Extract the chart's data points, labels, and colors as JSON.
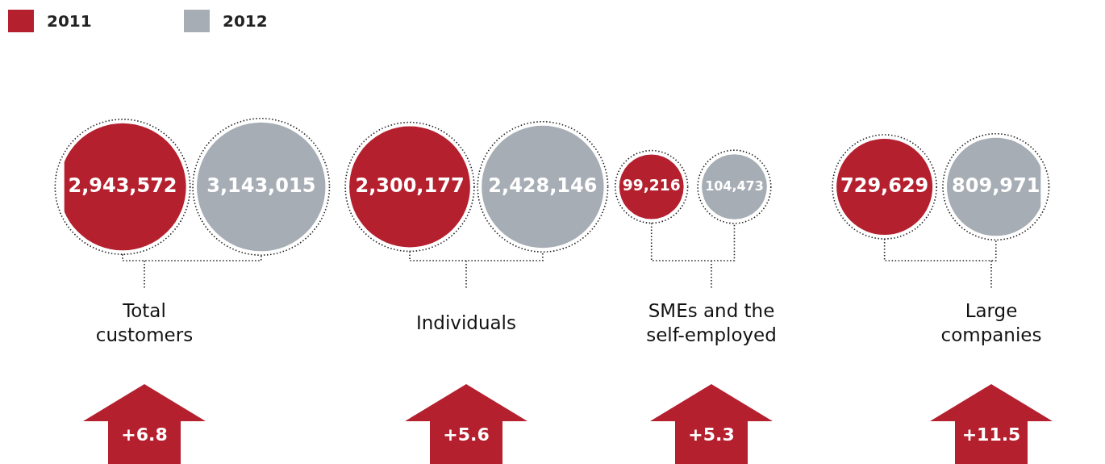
{
  "chart_data": {
    "type": "other",
    "categories": [
      "Total\ncustomers",
      "Individuals",
      "SMEs and the\nself-employed",
      "Large\ncompanies"
    ],
    "series": [
      {
        "name": "2011",
        "color": "#b5202e",
        "values": [
          2943572,
          2300177,
          99216,
          729629
        ],
        "value_labels": [
          "2,943,572",
          "2,300,177",
          "99,216",
          "729,629"
        ]
      },
      {
        "name": "2012",
        "color": "#a6adb4",
        "values": [
          3143015,
          2428146,
          104473,
          809971
        ],
        "value_labels": [
          "3,143,015",
          "2,428,146",
          "104,473",
          "809,971"
        ]
      }
    ],
    "annotations": [
      "+6.8",
      "+5.6",
      "+5.3",
      "+11.5"
    ],
    "legend": "top left"
  }
}
